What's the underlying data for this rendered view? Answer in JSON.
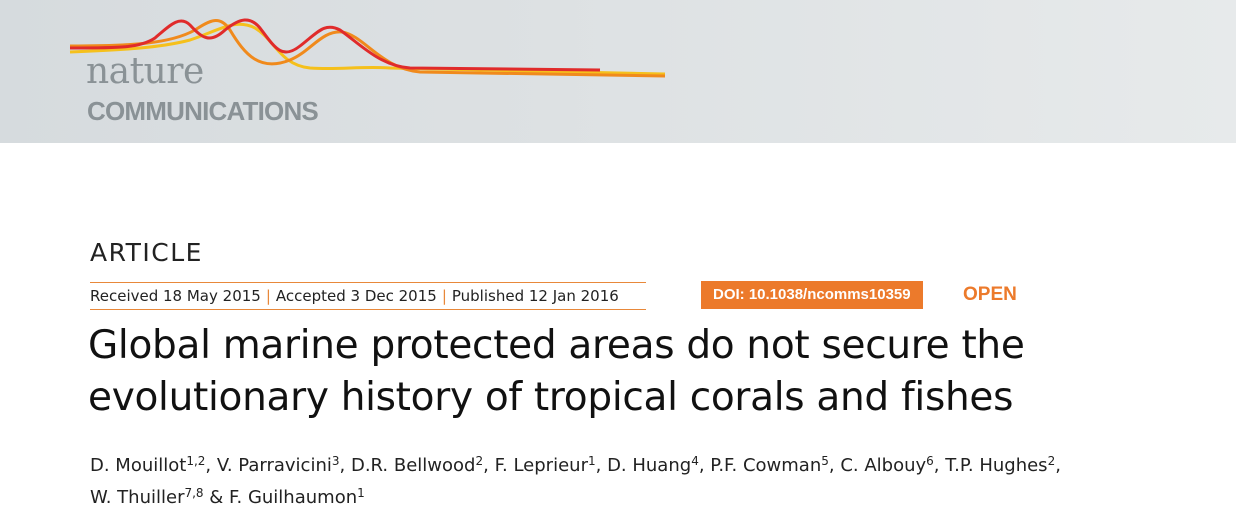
{
  "masthead": {
    "brand_top": "nature",
    "brand_bottom": "COMMUNICATIONS",
    "logo_colors": [
      "#e02b2b",
      "#f08a1c",
      "#f5c01c"
    ]
  },
  "article": {
    "type": "ARTICLE",
    "received": "Received 18 May 2015",
    "accepted": "Accepted 3 Dec 2015",
    "published": "Published 12 Jan 2016",
    "separator": "|",
    "doi": "DOI: 10.1038/ncomms10359",
    "access": "OPEN",
    "title_line1": "Global marine protected areas do not secure the",
    "title_line2": "evolutionary history of tropical corals and fishes",
    "accent_color": "#ec7a2b"
  },
  "authors": [
    {
      "name": "D. Mouillot",
      "aff": "1,2",
      "sep": ", "
    },
    {
      "name": "V. Parravicini",
      "aff": "3",
      "sep": ", "
    },
    {
      "name": "D.R. Bellwood",
      "aff": "2",
      "sep": ", "
    },
    {
      "name": "F. Leprieur",
      "aff": "1",
      "sep": ", "
    },
    {
      "name": "D. Huang",
      "aff": "4",
      "sep": ", "
    },
    {
      "name": "P.F. Cowman",
      "aff": "5",
      "sep": ", "
    },
    {
      "name": "C. Albouy",
      "aff": "6",
      "sep": ", "
    },
    {
      "name": "T.P. Hughes",
      "aff": "2",
      "sep": ","
    },
    {
      "name": "W. Thuiller",
      "aff": "7,8",
      "sep": " & "
    },
    {
      "name": "F. Guilhaumon",
      "aff": "1",
      "sep": ""
    }
  ]
}
